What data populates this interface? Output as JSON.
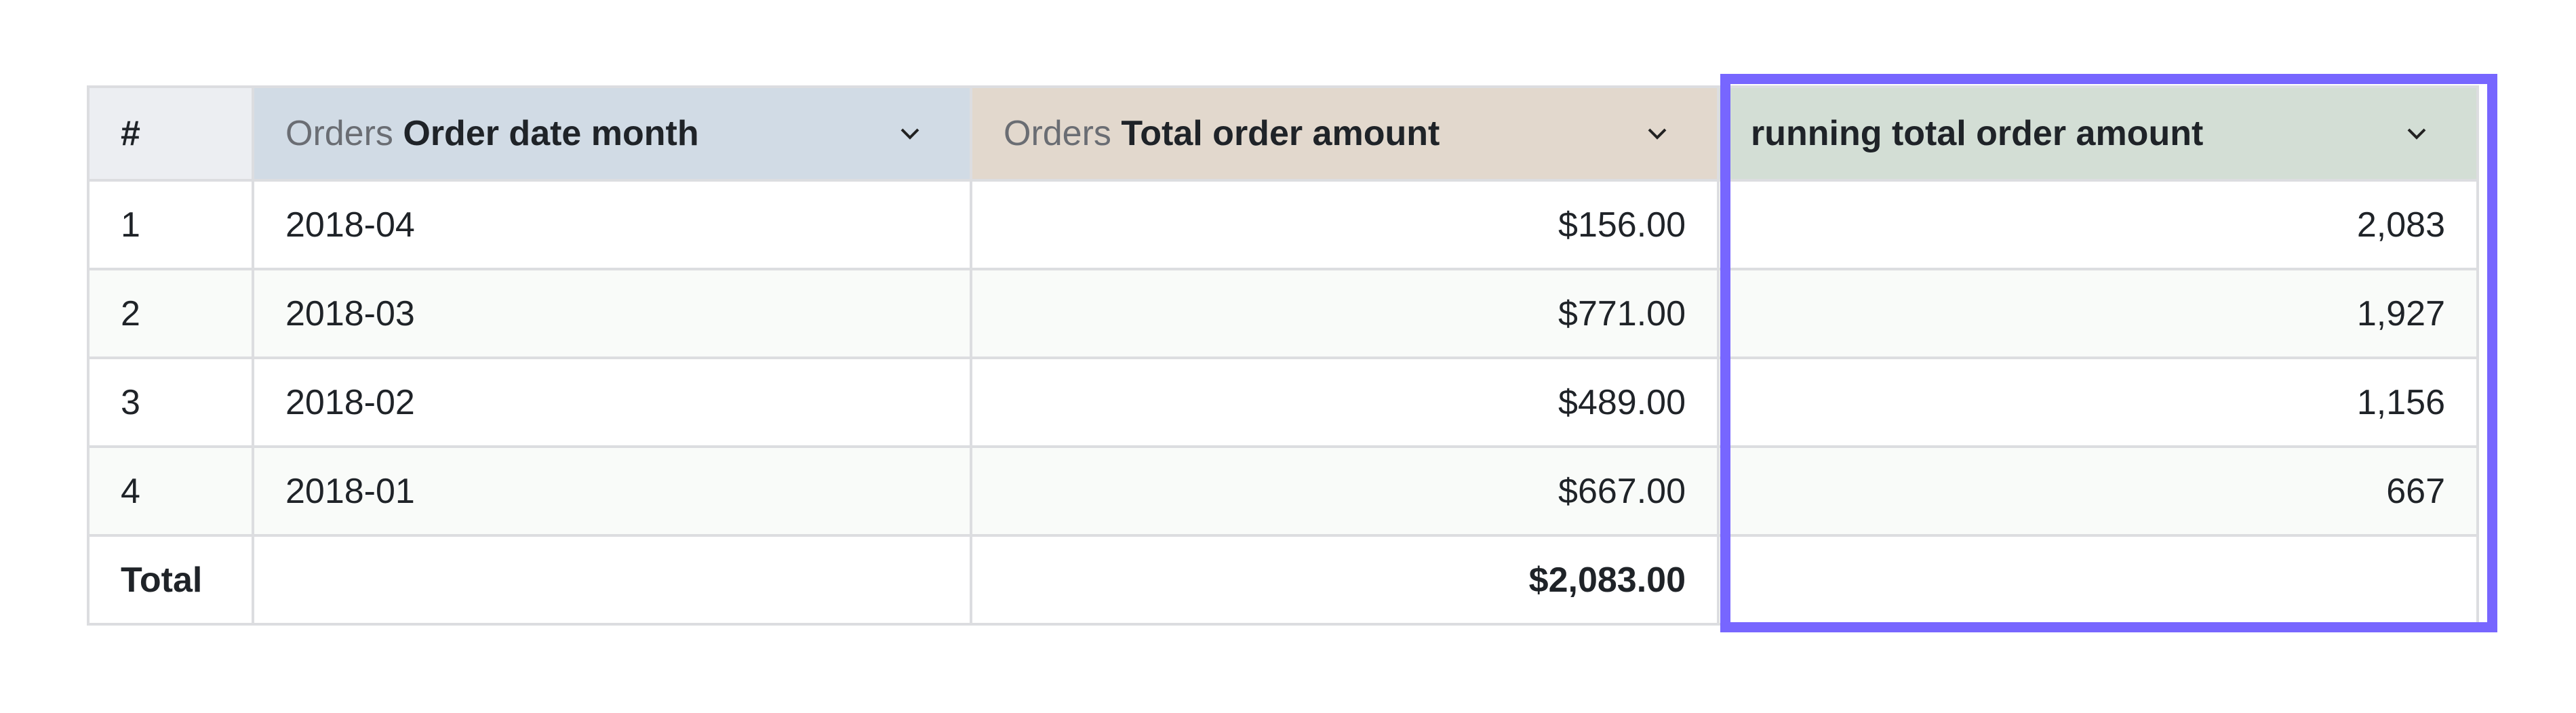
{
  "table": {
    "headers": [
      {
        "prefix": "",
        "label": "#"
      },
      {
        "prefix": "Orders",
        "label": "Order date month"
      },
      {
        "prefix": "Orders",
        "label": "Total order amount"
      },
      {
        "prefix": "",
        "label": "running total order amount"
      }
    ],
    "rows": [
      {
        "index": "1",
        "month": "2018-04",
        "total": "$156.00",
        "running": "2,083"
      },
      {
        "index": "2",
        "month": "2018-03",
        "total": "$771.00",
        "running": "1,927"
      },
      {
        "index": "3",
        "month": "2018-02",
        "total": "$489.00",
        "running": "1,156"
      },
      {
        "index": "4",
        "month": "2018-01",
        "total": "$667.00",
        "running": "667"
      }
    ],
    "footer": {
      "label": "Total",
      "total": "$2,083.00"
    }
  },
  "colors": {
    "highlight": "#7766ff",
    "header_month": "#d1dbe5",
    "header_total": "#e2d8cd",
    "header_running": "#d3ded5"
  }
}
